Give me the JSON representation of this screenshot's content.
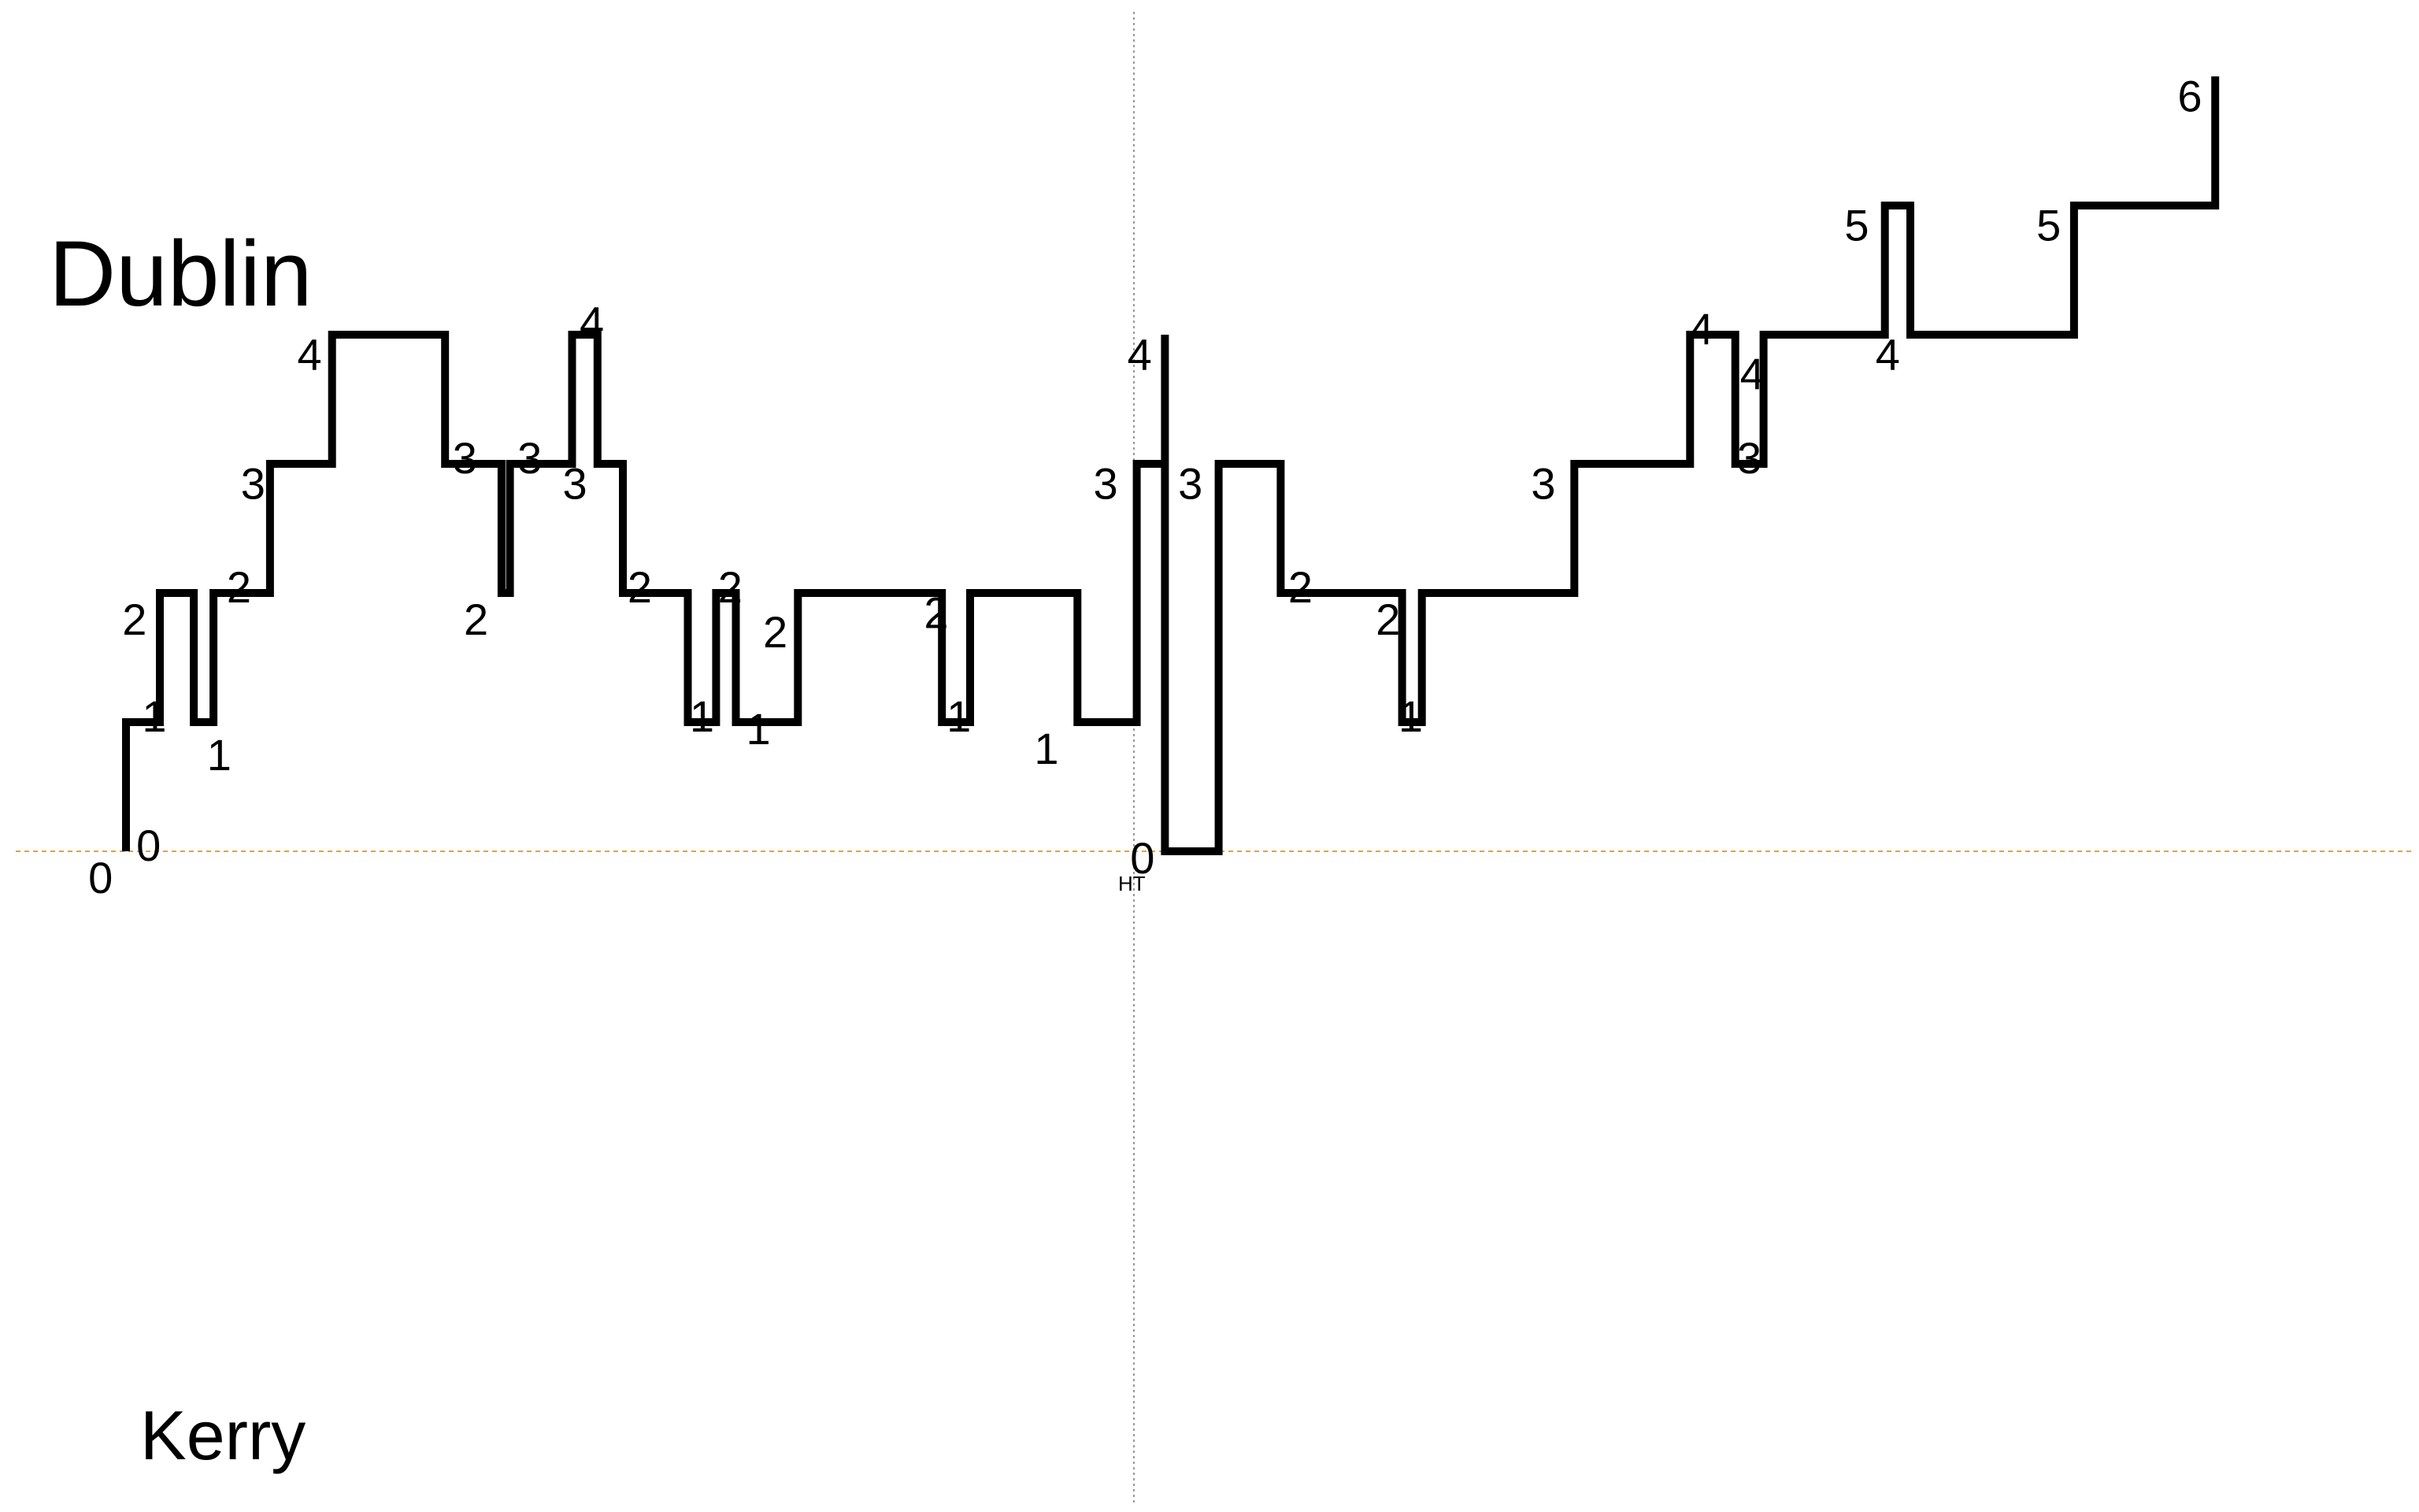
{
  "teams": {
    "top": "Dublin",
    "bottom": "Kerry"
  },
  "halftime_label": "HT",
  "colors": {
    "line": "#000000",
    "zero_line": "#f0a020",
    "halftime_line": "#999999"
  },
  "chart_data": {
    "type": "line",
    "description_free": true,
    "y_meaning": "margin (Dublin positive)",
    "ylim": [
      -6,
      6
    ],
    "x_range_minutes": [
      0,
      88
    ],
    "halftime_x": 40,
    "line_shape": "step",
    "steps": [
      {
        "x": 4.3,
        "y": 0
      },
      {
        "x": 4.3,
        "y": 1
      },
      {
        "x": 5.5,
        "y": 1
      },
      {
        "x": 5.5,
        "y": 2
      },
      {
        "x": 6.7,
        "y": 2
      },
      {
        "x": 6.7,
        "y": 1
      },
      {
        "x": 7.4,
        "y": 1
      },
      {
        "x": 7.4,
        "y": 2
      },
      {
        "x": 9.4,
        "y": 2
      },
      {
        "x": 9.4,
        "y": 3
      },
      {
        "x": 11.6,
        "y": 3
      },
      {
        "x": 11.6,
        "y": 4
      },
      {
        "x": 15.6,
        "y": 4
      },
      {
        "x": 15.6,
        "y": 3
      },
      {
        "x": 17.6,
        "y": 3
      },
      {
        "x": 17.6,
        "y": 2
      },
      {
        "x": 17.9,
        "y": 2
      },
      {
        "x": 17.9,
        "y": 3
      },
      {
        "x": 20.1,
        "y": 3
      },
      {
        "x": 20.1,
        "y": 4
      },
      {
        "x": 21.0,
        "y": 4
      },
      {
        "x": 21.0,
        "y": 3
      },
      {
        "x": 21.9,
        "y": 3
      },
      {
        "x": 21.9,
        "y": 2
      },
      {
        "x": 24.2,
        "y": 2
      },
      {
        "x": 24.2,
        "y": 1
      },
      {
        "x": 25.2,
        "y": 1
      },
      {
        "x": 25.2,
        "y": 2
      },
      {
        "x": 25.9,
        "y": 2
      },
      {
        "x": 25.9,
        "y": 1
      },
      {
        "x": 28.1,
        "y": 1
      },
      {
        "x": 28.1,
        "y": 2
      },
      {
        "x": 33.2,
        "y": 2
      },
      {
        "x": 33.2,
        "y": 1
      },
      {
        "x": 34.2,
        "y": 1
      },
      {
        "x": 34.2,
        "y": 2
      },
      {
        "x": 38.0,
        "y": 2
      },
      {
        "x": 38.0,
        "y": 1
      },
      {
        "x": 40.1,
        "y": 1
      },
      {
        "x": 40.1,
        "y": 3
      },
      {
        "x": 41.1,
        "y": 3
      },
      {
        "x": 41.1,
        "y": 4
      },
      {
        "x": 41.1,
        "y": 0
      },
      {
        "x": 43.0,
        "y": 0
      },
      {
        "x": 43.0,
        "y": 3
      },
      {
        "x": 45.2,
        "y": 3
      },
      {
        "x": 45.2,
        "y": 2
      },
      {
        "x": 49.5,
        "y": 2
      },
      {
        "x": 49.5,
        "y": 1
      },
      {
        "x": 50.2,
        "y": 1
      },
      {
        "x": 50.2,
        "y": 2
      },
      {
        "x": 55.6,
        "y": 2
      },
      {
        "x": 55.6,
        "y": 3
      },
      {
        "x": 59.7,
        "y": 3
      },
      {
        "x": 59.7,
        "y": 4
      },
      {
        "x": 61.3,
        "y": 4
      },
      {
        "x": 61.3,
        "y": 3
      },
      {
        "x": 62.3,
        "y": 3
      },
      {
        "x": 62.3,
        "y": 4
      },
      {
        "x": 66.6,
        "y": 4
      },
      {
        "x": 66.6,
        "y": 5
      },
      {
        "x": 67.5,
        "y": 5
      },
      {
        "x": 67.5,
        "y": 4
      },
      {
        "x": 73.3,
        "y": 4
      },
      {
        "x": 73.3,
        "y": 5
      },
      {
        "x": 78.3,
        "y": 5
      },
      {
        "x": 78.3,
        "y": 6
      }
    ],
    "score_labels": [
      {
        "text": "0",
        "x": 3.4,
        "y": -0.2
      },
      {
        "text": "0",
        "x": 5.1,
        "y": 0.05
      },
      {
        "text": "1",
        "x": 5.3,
        "y": 1.05
      },
      {
        "text": "2",
        "x": 4.6,
        "y": 1.8
      },
      {
        "text": "1",
        "x": 7.6,
        "y": 0.75
      },
      {
        "text": "2",
        "x": 8.3,
        "y": 2.05
      },
      {
        "text": "3",
        "x": 8.8,
        "y": 2.85
      },
      {
        "text": "4",
        "x": 10.8,
        "y": 3.85
      },
      {
        "text": "3",
        "x": 16.3,
        "y": 3.05
      },
      {
        "text": "3",
        "x": 18.6,
        "y": 3.05
      },
      {
        "text": "2",
        "x": 16.7,
        "y": 1.8
      },
      {
        "text": "4",
        "x": 20.8,
        "y": 4.1
      },
      {
        "text": "3",
        "x": 20.2,
        "y": 2.85
      },
      {
        "text": "2",
        "x": 22.5,
        "y": 2.05
      },
      {
        "text": "1",
        "x": 24.7,
        "y": 1.05
      },
      {
        "text": "2",
        "x": 25.7,
        "y": 2.05
      },
      {
        "text": "1",
        "x": 26.7,
        "y": 0.95
      },
      {
        "text": "2",
        "x": 27.3,
        "y": 1.7
      },
      {
        "text": "2",
        "x": 33.0,
        "y": 1.85
      },
      {
        "text": "1",
        "x": 33.8,
        "y": 1.05
      },
      {
        "text": "1",
        "x": 36.9,
        "y": 0.8
      },
      {
        "text": "3",
        "x": 39.0,
        "y": 2.85
      },
      {
        "text": "4",
        "x": 40.2,
        "y": 3.85
      },
      {
        "text": "3",
        "x": 42.0,
        "y": 2.85
      },
      {
        "text": "0",
        "x": 40.3,
        "y": -0.05
      },
      {
        "text": "2",
        "x": 45.9,
        "y": 2.05
      },
      {
        "text": "2",
        "x": 49.0,
        "y": 1.8
      },
      {
        "text": "1",
        "x": 49.8,
        "y": 1.05
      },
      {
        "text": "3",
        "x": 54.5,
        "y": 2.85
      },
      {
        "text": "4",
        "x": 60.1,
        "y": 4.05
      },
      {
        "text": "4",
        "x": 61.9,
        "y": 3.7
      },
      {
        "text": "3",
        "x": 61.8,
        "y": 3.05
      },
      {
        "text": "4",
        "x": 66.7,
        "y": 3.85
      },
      {
        "text": "5",
        "x": 65.6,
        "y": 4.85
      },
      {
        "text": "5",
        "x": 72.4,
        "y": 4.85
      },
      {
        "text": "6",
        "x": 77.4,
        "y": 5.85
      }
    ]
  }
}
